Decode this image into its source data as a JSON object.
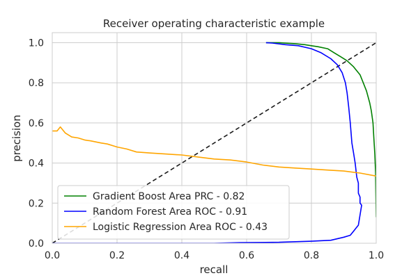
{
  "chart_data": {
    "type": "line",
    "title": "Receiver operating characteristic example",
    "xlabel": "recall",
    "ylabel": "precision",
    "xlim": [
      0.0,
      1.0
    ],
    "ylim": [
      0.0,
      1.05
    ],
    "xticks": [
      "0.0",
      "0.2",
      "0.4",
      "0.6",
      "0.8",
      "1.0"
    ],
    "yticks": [
      "0.0",
      "0.2",
      "0.4",
      "0.6",
      "0.8",
      "1.0"
    ],
    "grid": true,
    "legend_position": "lower-left",
    "colors": {
      "gb": "#008000",
      "rf": "#0000ff",
      "lr": "#ffa500",
      "diag": "#1a1a1a",
      "grid": "#cccccc",
      "frame": "#cccccc"
    },
    "series": [
      {
        "name": "Gradient Boost Area PRC - 0.82",
        "color": "#008000",
        "x": [
          0.66,
          0.7,
          0.75,
          0.78,
          0.8,
          0.82,
          0.85,
          0.87,
          0.89,
          0.91,
          0.93,
          0.95,
          0.96,
          0.97,
          0.98,
          0.985,
          0.99,
          0.993,
          0.996,
          0.998,
          0.999,
          1.0
        ],
        "y": [
          1.0,
          1.0,
          0.995,
          0.99,
          0.985,
          0.98,
          0.97,
          0.95,
          0.93,
          0.91,
          0.88,
          0.84,
          0.8,
          0.76,
          0.7,
          0.66,
          0.6,
          0.52,
          0.44,
          0.35,
          0.25,
          0.13
        ]
      },
      {
        "name": "Random Forest Area ROC - 0.91",
        "color": "#0000ff",
        "x": [
          0.66,
          0.68,
          0.72,
          0.76,
          0.8,
          0.83,
          0.86,
          0.88,
          0.895,
          0.905,
          0.91,
          0.915,
          0.92,
          0.925,
          0.93,
          0.935,
          0.94,
          0.945,
          0.945,
          0.95,
          0.95,
          0.955,
          0.945,
          0.935,
          0.92,
          0.9,
          0.86,
          0.8,
          0.7,
          0.58,
          0.5,
          0.0
        ],
        "y": [
          1.0,
          0.998,
          0.99,
          0.985,
          0.97,
          0.95,
          0.92,
          0.89,
          0.85,
          0.8,
          0.75,
          0.68,
          0.6,
          0.5,
          0.45,
          0.4,
          0.33,
          0.3,
          0.25,
          0.23,
          0.2,
          0.19,
          0.09,
          0.07,
          0.04,
          0.03,
          0.015,
          0.01,
          0.005,
          0.003,
          0.0,
          0.0
        ]
      },
      {
        "name": "Logistic Regression Area ROC - 0.43",
        "color": "#ffa500",
        "x": [
          0.0,
          0.015,
          0.025,
          0.04,
          0.06,
          0.08,
          0.1,
          0.12,
          0.15,
          0.17,
          0.2,
          0.23,
          0.26,
          0.3,
          0.35,
          0.4,
          0.45,
          0.5,
          0.55,
          0.6,
          0.65,
          0.7,
          0.75,
          0.8,
          0.85,
          0.9,
          0.95,
          1.0
        ],
        "y": [
          0.56,
          0.56,
          0.58,
          0.55,
          0.53,
          0.525,
          0.515,
          0.51,
          0.5,
          0.495,
          0.48,
          0.47,
          0.455,
          0.45,
          0.445,
          0.44,
          0.43,
          0.42,
          0.415,
          0.405,
          0.39,
          0.38,
          0.375,
          0.37,
          0.365,
          0.36,
          0.35,
          0.335
        ]
      }
    ],
    "reference_line": {
      "x": [
        0.0,
        1.0
      ],
      "y": [
        0.0,
        1.0
      ]
    }
  }
}
